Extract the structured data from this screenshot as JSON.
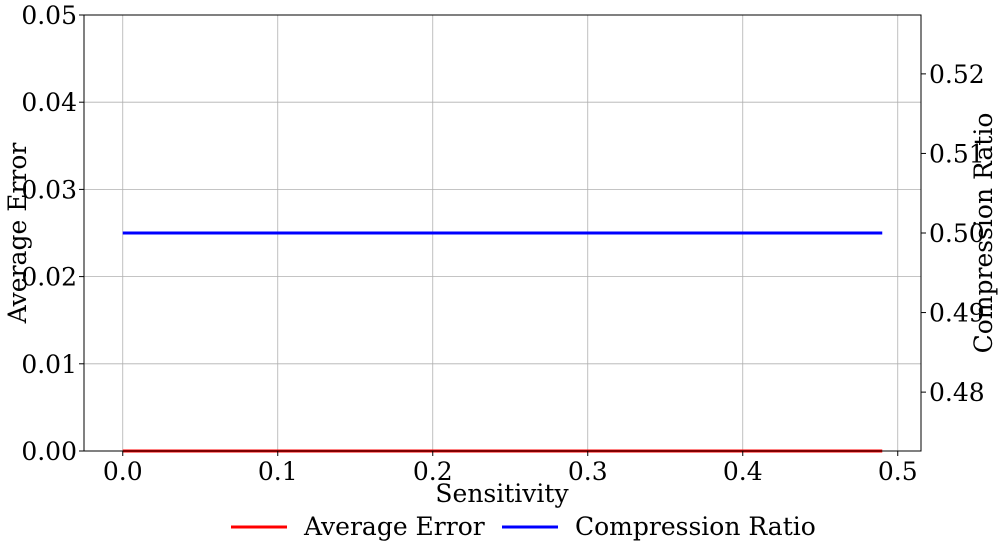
{
  "chart_data": {
    "type": "line",
    "xlabel": "Sensitivity",
    "ylabel": "Average Error",
    "y2label": "Compression Ratio",
    "xlim": [
      -0.025,
      0.515
    ],
    "ylim": [
      0,
      0.05
    ],
    "y2lim": [
      0.4726,
      0.5274
    ],
    "x_ticks": [
      "0.0",
      "0.1",
      "0.2",
      "0.3",
      "0.4",
      "0.5"
    ],
    "y_ticks": [
      "0.00",
      "0.01",
      "0.02",
      "0.03",
      "0.04",
      "0.05"
    ],
    "y2_ticks": [
      "0.48",
      "0.49",
      "0.50",
      "0.51",
      "0.52"
    ],
    "grid": true,
    "legend_position": "bottom-center",
    "series": [
      {
        "name": "Average Error",
        "axis": "left",
        "color": "#ff0000",
        "x": [
          0.0,
          0.49
        ],
        "y": [
          0.0,
          0.0
        ]
      },
      {
        "name": "Compression Ratio",
        "axis": "right",
        "color": "#0000ff",
        "x": [
          0.0,
          0.49
        ],
        "y": [
          0.5,
          0.5
        ]
      }
    ]
  }
}
